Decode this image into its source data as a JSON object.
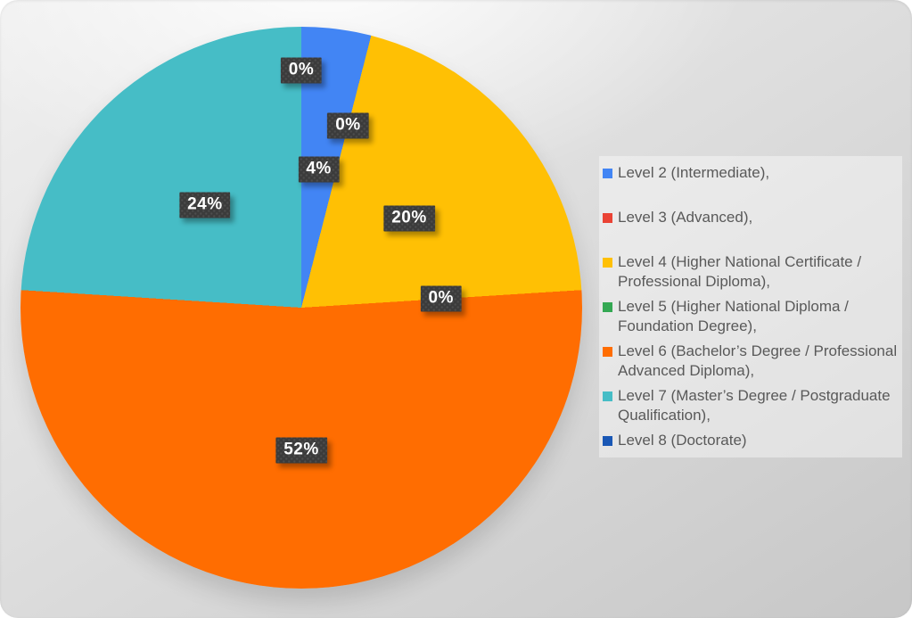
{
  "chart_data": {
    "type": "pie",
    "title": "",
    "unit": "%",
    "start_angle_deg": 0,
    "direction": "clockwise",
    "legend_position": "right",
    "slices": [
      {
        "label": "Level 2 (Intermediate),",
        "label_lines": [
          "Level 2 (Intermediate),"
        ],
        "value": 4,
        "color": "#4285F4"
      },
      {
        "label": "Level 3 (Advanced),",
        "label_lines": [
          "Level 3 (Advanced),"
        ],
        "value": 0,
        "color": "#EA4335"
      },
      {
        "label": "Level 4 (Higher National Certificate / Professional Diploma),",
        "label_lines": [
          "Level 4 (Higher National Certificate /",
          "Professional Diploma),"
        ],
        "value": 20,
        "color": "#FFC004"
      },
      {
        "label": "Level 5 (Higher National Diploma / Foundation Degree),",
        "label_lines": [
          "Level 5 (Higher National Diploma /",
          "Foundation Degree),"
        ],
        "value": 0,
        "color": "#34A853"
      },
      {
        "label": "Level 6 (Bachelor’s Degree / Professional Advanced Diploma),",
        "label_lines": [
          "Level 6 (Bachelor’s Degree / Professional",
          "Advanced Diploma),"
        ],
        "value": 52,
        "color": "#FF6D01"
      },
      {
        "label": "Level 7 (Master’s Degree / Postgraduate Qualification),",
        "label_lines": [
          "Level 7 (Master’s Degree / Postgraduate",
          "Qualification),"
        ],
        "value": 24,
        "color": "#46BDC6"
      },
      {
        "label": "Level 8 (Doctorate)",
        "label_lines": [
          "Level 8 (Doctorate)"
        ],
        "value": 0,
        "color": "#1957B5"
      }
    ],
    "data_labels": [
      "4%",
      "0%",
      "20%",
      "0%",
      "52%",
      "24%",
      "0%"
    ]
  },
  "styles": {
    "label_box_bg": "#3B3B3B",
    "label_text_color": "#FFFFFF",
    "legend_text_color": "#595959"
  }
}
